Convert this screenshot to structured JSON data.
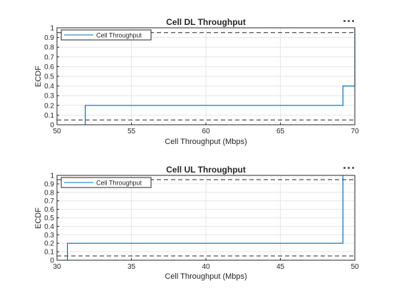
{
  "charts": [
    {
      "title": "Cell DL Throughput",
      "xlabel": "Cell Throughput (Mbps)",
      "ylabel": "ECDF",
      "legend": "Cell Throughput",
      "more_icon": "ellipsis-icon"
    },
    {
      "title": "Cell UL Throughput",
      "xlabel": "Cell Throughput (Mbps)",
      "ylabel": "ECDF",
      "legend": "Cell Throughput",
      "more_icon": "ellipsis-icon"
    }
  ],
  "chart_data": [
    {
      "type": "line",
      "step": true,
      "title": "Cell DL Throughput",
      "xlabel": "Cell Throughput (Mbps)",
      "ylabel": "ECDF",
      "xlim": [
        50,
        70
      ],
      "ylim": [
        0,
        1
      ],
      "xticks": [
        50,
        55,
        60,
        65,
        70
      ],
      "yticks": [
        0,
        0.1,
        0.2,
        0.3,
        0.4,
        0.5,
        0.6,
        0.7,
        0.8,
        0.9,
        1
      ],
      "grid": true,
      "legend_position": "top-left",
      "series": [
        {
          "name": "Cell Throughput",
          "color": "#0072bd",
          "x": [
            51.9,
            51.9,
            69.2,
            69.2,
            70,
            70
          ],
          "y": [
            0,
            0.2,
            0.2,
            0.4,
            0.4,
            1.0
          ]
        }
      ],
      "reference_lines": [
        {
          "y": 0.05,
          "color": "#262626",
          "style": "dashed"
        },
        {
          "y": 0.95,
          "color": "#262626",
          "style": "dashed"
        }
      ]
    },
    {
      "type": "line",
      "step": true,
      "title": "Cell UL Throughput",
      "xlabel": "Cell Throughput (Mbps)",
      "ylabel": "ECDF",
      "xlim": [
        30,
        50
      ],
      "ylim": [
        0,
        1
      ],
      "xticks": [
        30,
        35,
        40,
        45,
        50
      ],
      "yticks": [
        0,
        0.1,
        0.2,
        0.3,
        0.4,
        0.5,
        0.6,
        0.7,
        0.8,
        0.9,
        1
      ],
      "grid": true,
      "legend_position": "top-left",
      "series": [
        {
          "name": "Cell Throughput",
          "color": "#0072bd",
          "x": [
            30.7,
            30.7,
            49.2,
            49.2
          ],
          "y": [
            0,
            0.2,
            0.2,
            1.0
          ]
        }
      ],
      "reference_lines": [
        {
          "y": 0.05,
          "color": "#262626",
          "style": "dashed"
        },
        {
          "y": 0.95,
          "color": "#262626",
          "style": "dashed"
        }
      ]
    }
  ]
}
